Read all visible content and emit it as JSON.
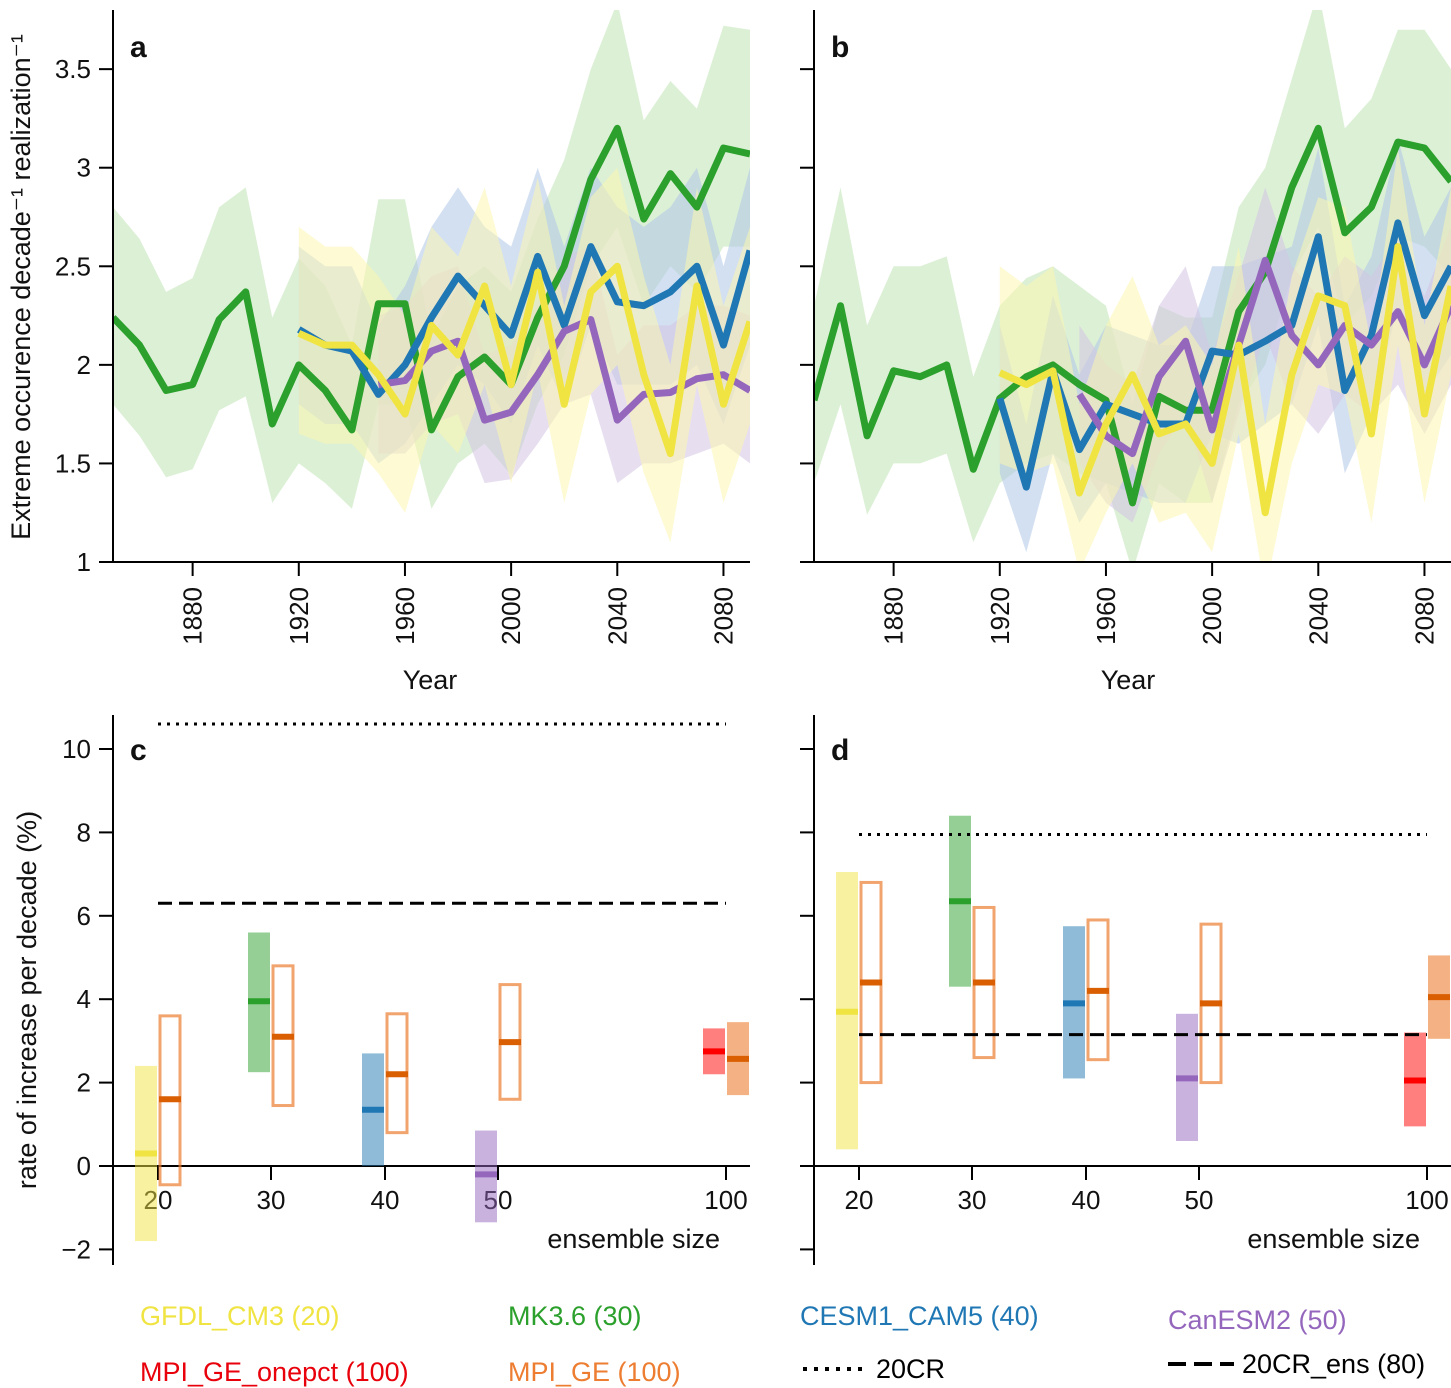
{
  "colors": {
    "green": "#2ca02c",
    "blue": "#1f77b4",
    "yellow": "#f0e442",
    "purple": "#9467bd",
    "red": "#ff0000",
    "orange": "#ed7d31",
    "orange_dark": "#d95f02",
    "green_band": "#bfe3b4",
    "blue_band": "#aec7e8",
    "yellow_band": "#fbf6b0",
    "purple_band": "#d4c5e4",
    "orange_band": "#f5d3b4"
  },
  "legend": {
    "items": [
      {
        "label": "GFDL_CM3 (20)",
        "color": "#f0e442"
      },
      {
        "label": "MK3.6 (30)",
        "color": "#2ca02c"
      },
      {
        "label": "CESM1_CAM5 (40)",
        "color": "#1f77b4"
      },
      {
        "label": "CanESM2 (50)",
        "color": "#9467bd"
      },
      {
        "label": "MPI_GE_onepct (100)",
        "color": "#e8000b"
      },
      {
        "label": "MPI_GE (100)",
        "color": "#ed7d31"
      },
      {
        "label": "20CR",
        "color": "#000000",
        "style": "dotted"
      },
      {
        "label": "20CR_ens (80)",
        "color": "#000000",
        "style": "dashed"
      }
    ]
  },
  "chart_data": [
    {
      "panel": "a",
      "type": "line",
      "ylabel": "Extreme occurence decade⁻¹ realization⁻¹",
      "xlabel": "Year",
      "xlim": [
        1850,
        2090
      ],
      "ylim": [
        1,
        3.8
      ],
      "xticks": [
        "1880",
        "1920",
        "1960",
        "2000",
        "2040",
        "2080"
      ],
      "yticks": [
        "1",
        "1.5",
        "2",
        "2.5",
        "3",
        "3.5"
      ],
      "series": [
        {
          "key": "green",
          "x": [
            1850,
            1860,
            1870,
            1880,
            1890,
            1900,
            1910,
            1920,
            1930,
            1940,
            1950,
            1960,
            1970,
            1980,
            1990,
            2000,
            2010,
            2020,
            2030,
            2040,
            2050,
            2060,
            2070,
            2080,
            2090
          ],
          "y": [
            2.24,
            2.1,
            1.87,
            1.9,
            2.23,
            2.37,
            1.7,
            2.0,
            1.87,
            1.67,
            2.31,
            2.31,
            1.67,
            1.94,
            2.04,
            1.9,
            2.24,
            2.5,
            2.94,
            3.2,
            2.74,
            2.97,
            2.8,
            3.1,
            3.07
          ],
          "lo": [
            1.8,
            1.64,
            1.43,
            1.47,
            1.77,
            1.84,
            1.3,
            1.5,
            1.4,
            1.27,
            1.8,
            1.8,
            1.27,
            1.5,
            1.6,
            1.44,
            1.8,
            2.05,
            2.5,
            2.7,
            2.3,
            2.5,
            2.37,
            2.6,
            2.6
          ],
          "hi": [
            2.8,
            2.64,
            2.37,
            2.44,
            2.8,
            2.9,
            2.24,
            2.54,
            2.4,
            2.1,
            2.84,
            2.84,
            2.14,
            2.4,
            2.5,
            2.37,
            2.74,
            3.04,
            3.5,
            3.84,
            3.24,
            3.44,
            3.3,
            3.72,
            3.7
          ]
        },
        {
          "key": "blue",
          "x": [
            1920,
            1930,
            1940,
            1950,
            1960,
            1970,
            1980,
            1990,
            2000,
            2010,
            2020,
            2030,
            2040,
            2050,
            2060,
            2070,
            2080,
            2090
          ],
          "y": [
            2.18,
            2.1,
            2.07,
            1.85,
            2.0,
            2.24,
            2.45,
            2.3,
            2.15,
            2.55,
            2.2,
            2.6,
            2.32,
            2.3,
            2.37,
            2.5,
            2.1,
            2.58
          ],
          "lo": [
            1.8,
            1.7,
            1.7,
            1.5,
            1.6,
            1.8,
            2.0,
            1.9,
            1.7,
            2.1,
            1.8,
            2.2,
            1.9,
            1.9,
            1.9,
            2.0,
            1.7,
            2.1
          ],
          "hi": [
            2.6,
            2.5,
            2.5,
            2.2,
            2.4,
            2.7,
            2.9,
            2.7,
            2.6,
            3.0,
            2.6,
            3.0,
            2.8,
            2.7,
            2.8,
            3.0,
            2.5,
            3.0
          ]
        },
        {
          "key": "purple",
          "x": [
            1950,
            1960,
            1970,
            1980,
            1990,
            2000,
            2010,
            2020,
            2030,
            2040,
            2050,
            2060,
            2070,
            2080,
            2090
          ],
          "y": [
            1.9,
            1.92,
            2.07,
            2.12,
            1.72,
            1.76,
            1.95,
            2.17,
            2.23,
            1.72,
            1.85,
            1.86,
            1.93,
            1.95,
            1.87
          ],
          "lo": [
            1.55,
            1.55,
            1.7,
            1.75,
            1.4,
            1.42,
            1.6,
            1.8,
            1.85,
            1.4,
            1.5,
            1.5,
            1.55,
            1.6,
            1.5
          ],
          "hi": [
            2.25,
            2.3,
            2.45,
            2.5,
            2.05,
            2.1,
            2.3,
            2.55,
            2.6,
            2.05,
            2.2,
            2.2,
            2.3,
            2.3,
            2.25
          ]
        },
        {
          "key": "yellow",
          "x": [
            1920,
            1930,
            1940,
            1950,
            1960,
            1970,
            1980,
            1990,
            2000,
            2010,
            2020,
            2030,
            2040,
            2050,
            2060,
            2070,
            2080,
            2090
          ],
          "y": [
            2.16,
            2.1,
            2.1,
            1.95,
            1.75,
            2.2,
            2.05,
            2.4,
            1.9,
            2.47,
            1.8,
            2.37,
            2.5,
            1.95,
            1.55,
            2.4,
            1.8,
            2.22
          ],
          "lo": [
            1.65,
            1.6,
            1.6,
            1.45,
            1.25,
            1.7,
            1.55,
            1.9,
            1.4,
            1.97,
            1.3,
            1.85,
            2.0,
            1.45,
            1.1,
            1.9,
            1.3,
            1.7
          ],
          "hi": [
            2.7,
            2.6,
            2.6,
            2.45,
            2.25,
            2.7,
            2.55,
            2.9,
            2.4,
            2.95,
            2.3,
            2.85,
            3.0,
            2.45,
            2.0,
            2.9,
            2.3,
            2.7
          ]
        }
      ]
    },
    {
      "panel": "b",
      "type": "line",
      "xlabel": "Year",
      "xlim": [
        1850,
        2090
      ],
      "ylim": [
        1,
        3.8
      ],
      "xticks": [
        "1880",
        "1920",
        "1960",
        "2000",
        "2040",
        "2080"
      ],
      "series": [
        {
          "key": "green",
          "x": [
            1850,
            1860,
            1870,
            1880,
            1890,
            1900,
            1910,
            1920,
            1930,
            1940,
            1950,
            1960,
            1970,
            1980,
            1990,
            2000,
            2010,
            2020,
            2030,
            2040,
            2050,
            2060,
            2070,
            2080,
            2090
          ],
          "y": [
            1.82,
            2.3,
            1.64,
            1.97,
            1.94,
            2.0,
            1.47,
            1.83,
            1.94,
            2.0,
            1.9,
            1.82,
            1.3,
            1.84,
            1.77,
            1.77,
            2.27,
            2.47,
            2.9,
            3.2,
            2.67,
            2.8,
            3.13,
            3.1,
            2.93
          ],
          "lo": [
            1.4,
            1.8,
            1.24,
            1.5,
            1.5,
            1.55,
            1.1,
            1.4,
            1.5,
            1.55,
            1.45,
            1.4,
            0.95,
            1.4,
            1.3,
            1.3,
            1.8,
            2.0,
            2.45,
            2.7,
            2.2,
            2.35,
            2.65,
            2.6,
            2.45
          ],
          "hi": [
            2.3,
            2.9,
            2.2,
            2.5,
            2.5,
            2.55,
            1.94,
            2.3,
            2.44,
            2.5,
            2.4,
            2.3,
            1.8,
            2.3,
            2.24,
            2.24,
            2.8,
            3.0,
            3.45,
            3.9,
            3.2,
            3.35,
            3.7,
            3.7,
            3.5
          ]
        },
        {
          "key": "blue",
          "x": [
            1920,
            1930,
            1940,
            1950,
            1960,
            1970,
            1980,
            1990,
            2000,
            2010,
            2020,
            2030,
            2040,
            2050,
            2060,
            2070,
            2080,
            2090
          ],
          "y": [
            1.83,
            1.38,
            1.97,
            1.57,
            1.8,
            1.75,
            1.7,
            1.7,
            2.07,
            2.05,
            2.12,
            2.2,
            2.65,
            1.87,
            2.15,
            2.72,
            2.25,
            2.5
          ],
          "lo": [
            1.45,
            1.05,
            1.55,
            1.2,
            1.4,
            1.35,
            1.3,
            1.3,
            1.65,
            1.6,
            1.7,
            1.8,
            2.2,
            1.45,
            1.75,
            2.3,
            1.85,
            2.05
          ],
          "hi": [
            2.2,
            1.7,
            2.35,
            1.95,
            2.2,
            2.15,
            2.1,
            2.1,
            2.5,
            2.5,
            2.55,
            2.6,
            3.1,
            2.3,
            2.55,
            3.15,
            2.65,
            2.9
          ]
        },
        {
          "key": "purple",
          "x": [
            1950,
            1960,
            1970,
            1980,
            1990,
            2000,
            2010,
            2020,
            2030,
            2040,
            2050,
            2060,
            2070,
            2080,
            2090
          ],
          "y": [
            1.85,
            1.64,
            1.55,
            1.94,
            2.12,
            1.67,
            2.1,
            2.53,
            2.15,
            2.0,
            2.2,
            2.1,
            2.27,
            2.0,
            2.3
          ],
          "lo": [
            1.5,
            1.3,
            1.2,
            1.55,
            1.75,
            1.3,
            1.75,
            2.15,
            1.8,
            1.65,
            1.85,
            1.75,
            1.9,
            1.65,
            1.9
          ],
          "hi": [
            2.2,
            2.0,
            1.9,
            2.3,
            2.5,
            2.05,
            2.45,
            2.9,
            2.5,
            2.35,
            2.55,
            2.45,
            2.65,
            2.35,
            2.7
          ]
        },
        {
          "key": "yellow",
          "x": [
            1920,
            1930,
            1940,
            1950,
            1960,
            1970,
            1980,
            1990,
            2000,
            2010,
            2020,
            2030,
            2040,
            2050,
            2060,
            2070,
            2080,
            2090
          ],
          "y": [
            1.96,
            1.9,
            1.97,
            1.35,
            1.7,
            1.95,
            1.65,
            1.7,
            1.5,
            2.1,
            1.25,
            1.95,
            2.35,
            2.3,
            1.65,
            2.6,
            1.75,
            2.4
          ],
          "lo": [
            1.5,
            1.45,
            1.5,
            0.95,
            1.25,
            1.5,
            1.2,
            1.25,
            1.05,
            1.65,
            0.85,
            1.5,
            1.9,
            1.85,
            1.2,
            2.1,
            1.3,
            1.95
          ],
          "hi": [
            2.5,
            2.4,
            2.5,
            1.8,
            2.2,
            2.45,
            2.1,
            2.2,
            2.0,
            2.6,
            1.7,
            2.45,
            2.85,
            2.8,
            2.1,
            3.1,
            2.2,
            2.9
          ]
        }
      ]
    },
    {
      "panel": "c",
      "type": "bar",
      "ylabel": "rate of increase per decade (%)",
      "xlabel": "ensemble size",
      "ylim": [
        -2.2,
        10.7
      ],
      "xticks": [
        "20",
        "30",
        "40",
        "50",
        "100"
      ],
      "yticks": [
        "−2",
        "0",
        "2",
        "4",
        "6",
        "8",
        "10"
      ],
      "ref_20CR": 10.6,
      "ref_20CR_ens": 6.3,
      "boxes": [
        {
          "pos": "20",
          "key": "yellow",
          "style": "filled",
          "lo": -1.8,
          "hi": 2.4,
          "mid": 0.3
        },
        {
          "pos": "20",
          "key": "orange",
          "style": "open",
          "lo": -0.45,
          "hi": 3.6,
          "mid": 1.6
        },
        {
          "pos": "30",
          "key": "green",
          "style": "filled",
          "lo": 2.25,
          "hi": 5.6,
          "mid": 3.95
        },
        {
          "pos": "30",
          "key": "orange",
          "style": "open",
          "lo": 1.45,
          "hi": 4.8,
          "mid": 3.1
        },
        {
          "pos": "40",
          "key": "blue",
          "style": "filled",
          "lo": 0.0,
          "hi": 2.7,
          "mid": 1.35
        },
        {
          "pos": "40",
          "key": "orange",
          "style": "open",
          "lo": 0.8,
          "hi": 3.65,
          "mid": 2.2
        },
        {
          "pos": "50",
          "key": "purple",
          "style": "filled",
          "lo": -1.35,
          "hi": 0.85,
          "mid": -0.2
        },
        {
          "pos": "50",
          "key": "orange",
          "style": "open",
          "lo": 1.6,
          "hi": 4.35,
          "mid": 2.97
        },
        {
          "pos": "100",
          "key": "red",
          "style": "filled",
          "lo": 2.2,
          "hi": 3.3,
          "mid": 2.75
        },
        {
          "pos": "100",
          "key": "orange",
          "style": "filledlight",
          "lo": 1.7,
          "hi": 3.45,
          "mid": 2.57
        }
      ]
    },
    {
      "panel": "d",
      "type": "bar",
      "xlabel": "ensemble size",
      "ylim": [
        -2.2,
        10.7
      ],
      "xticks": [
        "20",
        "30",
        "40",
        "50",
        "100"
      ],
      "ref_20CR": 7.95,
      "ref_20CR_ens": 3.15,
      "boxes": [
        {
          "pos": "20",
          "key": "yellow",
          "style": "filled",
          "lo": 0.4,
          "hi": 7.05,
          "mid": 3.7
        },
        {
          "pos": "20",
          "key": "orange",
          "style": "open",
          "lo": 2.0,
          "hi": 6.8,
          "mid": 4.4
        },
        {
          "pos": "30",
          "key": "green",
          "style": "filled",
          "lo": 4.3,
          "hi": 8.4,
          "mid": 6.35
        },
        {
          "pos": "30",
          "key": "orange",
          "style": "open",
          "lo": 2.6,
          "hi": 6.2,
          "mid": 4.4
        },
        {
          "pos": "40",
          "key": "blue",
          "style": "filled",
          "lo": 2.1,
          "hi": 5.75,
          "mid": 3.9
        },
        {
          "pos": "40",
          "key": "orange",
          "style": "open",
          "lo": 2.55,
          "hi": 5.9,
          "mid": 4.2
        },
        {
          "pos": "50",
          "key": "purple",
          "style": "filled",
          "lo": 0.6,
          "hi": 3.65,
          "mid": 2.1
        },
        {
          "pos": "50",
          "key": "orange",
          "style": "open",
          "lo": 2.0,
          "hi": 5.8,
          "mid": 3.9
        },
        {
          "pos": "100",
          "key": "red",
          "style": "filled",
          "lo": 0.95,
          "hi": 3.2,
          "mid": 2.05
        },
        {
          "pos": "100",
          "key": "orange",
          "style": "filledlight",
          "lo": 3.05,
          "hi": 5.05,
          "mid": 4.05
        }
      ]
    }
  ]
}
